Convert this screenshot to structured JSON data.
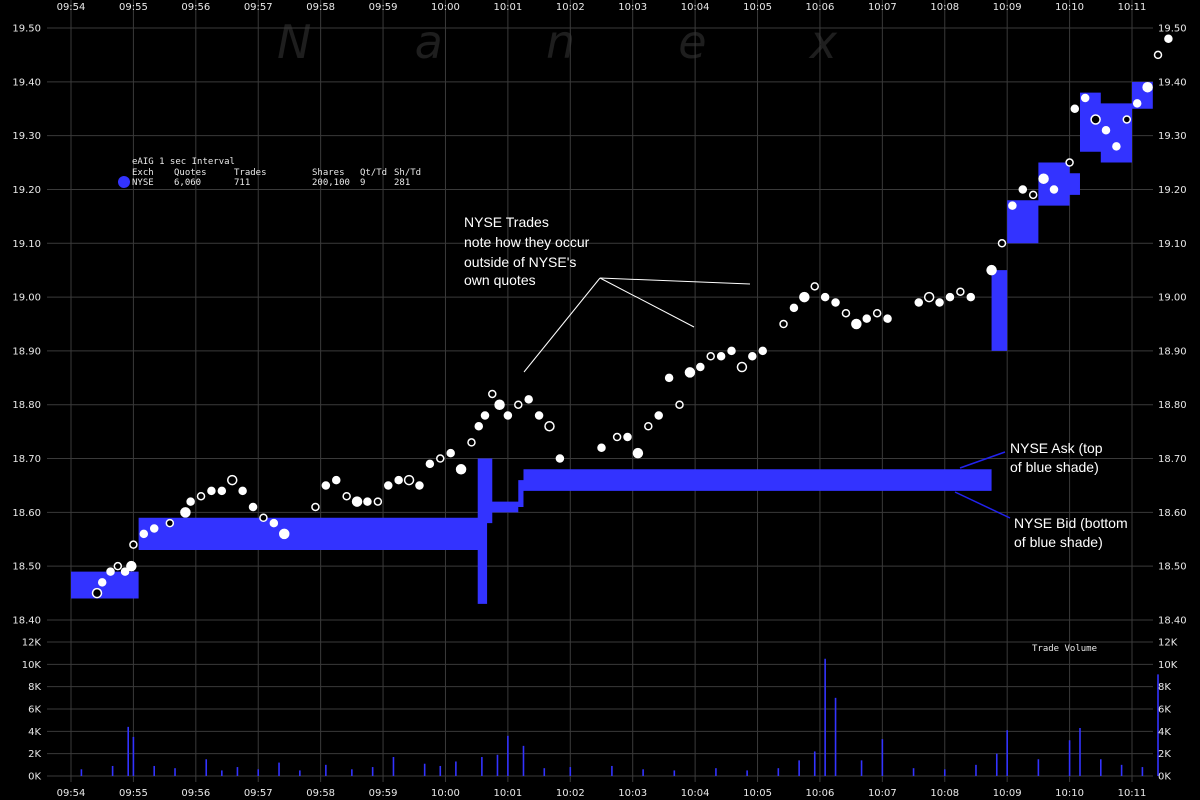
{
  "colors": {
    "background": "#000000",
    "grid": "#3a3a3a",
    "quote_band": "#3333ff",
    "trades": "#ffffff",
    "volume": "#3333ff",
    "text": "#e8e8e8"
  },
  "watermark": "N a n e x",
  "legend": {
    "title": "eAIG 1 sec Interval",
    "headers": [
      "Exch",
      "Quotes",
      "Trades",
      "Shares",
      "Qt/Td",
      "Sh/Td"
    ],
    "row": [
      "NYSE",
      "6,060",
      "711",
      "200,100",
      "9",
      "281"
    ]
  },
  "annotations": {
    "trades": [
      "NYSE Trades",
      "note how they occur",
      "outside of NYSE's",
      "own quotes"
    ],
    "ask": [
      "NYSE Ask (top",
      "of blue shade)"
    ],
    "bid": [
      "NYSE Bid (bottom",
      "of blue shade)"
    ]
  },
  "chart_data": [
    {
      "type": "area",
      "title": "",
      "x_ticks": [
        "09:54",
        "09:55",
        "09:56",
        "09:57",
        "09:58",
        "09:59",
        "10:00",
        "10:01",
        "10:02",
        "10:03",
        "10:04",
        "10:05",
        "10:06",
        "10:07",
        "10:08",
        "10:09",
        "10:10",
        "10:11"
      ],
      "y_ticks": [
        "18.40",
        "18.50",
        "18.60",
        "18.70",
        "18.80",
        "18.90",
        "19.00",
        "19.10",
        "19.20",
        "19.30",
        "19.40",
        "19.50"
      ],
      "ylim": [
        18.4,
        19.5
      ],
      "grid": true,
      "legend_position": "top-left",
      "series": [
        {
          "name": "NYSE",
          "kind": "quote band (bid to ask)",
          "points": [
            {
              "t": "09:54:00",
              "bid": 18.44,
              "ask": 18.49
            },
            {
              "t": "09:55:00",
              "bid": 18.44,
              "ask": 18.49
            },
            {
              "t": "09:55:05",
              "bid": 18.53,
              "ask": 18.59
            },
            {
              "t": "10:00:30",
              "bid": 18.53,
              "ask": 18.59
            },
            {
              "t": "10:00:31",
              "bid": 18.43,
              "ask": 18.7
            },
            {
              "t": "10:00:40",
              "bid": 18.58,
              "ask": 18.7
            },
            {
              "t": "10:00:45",
              "bid": 18.6,
              "ask": 18.62
            },
            {
              "t": "10:01:10",
              "bid": 18.61,
              "ask": 18.66
            },
            {
              "t": "10:01:15",
              "bid": 18.64,
              "ask": 18.68
            },
            {
              "t": "10:08:40",
              "bid": 18.64,
              "ask": 18.68
            },
            {
              "t": "10:08:45",
              "bid": 18.9,
              "ask": 19.05
            },
            {
              "t": "10:09:00",
              "bid": 19.1,
              "ask": 19.18
            },
            {
              "t": "10:09:30",
              "bid": 19.17,
              "ask": 19.25
            },
            {
              "t": "10:10:00",
              "bid": 19.19,
              "ask": 19.23
            },
            {
              "t": "10:10:10",
              "bid": 19.27,
              "ask": 19.38
            },
            {
              "t": "10:10:30",
              "bid": 19.25,
              "ask": 19.36
            },
            {
              "t": "10:11:00",
              "bid": 19.35,
              "ask": 19.4
            },
            {
              "t": "10:11:20",
              "bid": 19.4,
              "ask": 19.49
            }
          ]
        },
        {
          "name": "NYSE Trades",
          "kind": "scatter",
          "points": [
            [
              "09:54:25",
              18.45
            ],
            [
              "09:54:30",
              18.47
            ],
            [
              "09:54:38",
              18.49
            ],
            [
              "09:54:45",
              18.5
            ],
            [
              "09:54:52",
              18.49
            ],
            [
              "09:54:58",
              18.5
            ],
            [
              "09:55:00",
              18.54
            ],
            [
              "09:55:10",
              18.56
            ],
            [
              "09:55:20",
              18.57
            ],
            [
              "09:55:35",
              18.58
            ],
            [
              "09:55:50",
              18.6
            ],
            [
              "09:55:55",
              18.62
            ],
            [
              "09:56:05",
              18.63
            ],
            [
              "09:56:15",
              18.64
            ],
            [
              "09:56:25",
              18.64
            ],
            [
              "09:56:35",
              18.66
            ],
            [
              "09:56:45",
              18.64
            ],
            [
              "09:56:55",
              18.61
            ],
            [
              "09:57:05",
              18.59
            ],
            [
              "09:57:15",
              18.58
            ],
            [
              "09:57:25",
              18.56
            ],
            [
              "09:57:55",
              18.61
            ],
            [
              "09:58:05",
              18.65
            ],
            [
              "09:58:15",
              18.66
            ],
            [
              "09:58:25",
              18.63
            ],
            [
              "09:58:35",
              18.62
            ],
            [
              "09:58:45",
              18.62
            ],
            [
              "09:58:55",
              18.62
            ],
            [
              "09:59:05",
              18.65
            ],
            [
              "09:59:15",
              18.66
            ],
            [
              "09:59:25",
              18.66
            ],
            [
              "09:59:35",
              18.65
            ],
            [
              "09:59:45",
              18.69
            ],
            [
              "09:59:55",
              18.7
            ],
            [
              "10:00:05",
              18.71
            ],
            [
              "10:00:15",
              18.68
            ],
            [
              "10:00:25",
              18.73
            ],
            [
              "10:00:32",
              18.76
            ],
            [
              "10:00:38",
              18.78
            ],
            [
              "10:00:45",
              18.82
            ],
            [
              "10:00:52",
              18.8
            ],
            [
              "10:01:00",
              18.78
            ],
            [
              "10:01:10",
              18.8
            ],
            [
              "10:01:20",
              18.81
            ],
            [
              "10:01:30",
              18.78
            ],
            [
              "10:01:40",
              18.76
            ],
            [
              "10:01:50",
              18.7
            ],
            [
              "10:02:30",
              18.72
            ],
            [
              "10:02:45",
              18.74
            ],
            [
              "10:02:55",
              18.74
            ],
            [
              "10:03:05",
              18.71
            ],
            [
              "10:03:15",
              18.76
            ],
            [
              "10:03:25",
              18.78
            ],
            [
              "10:03:35",
              18.85
            ],
            [
              "10:03:45",
              18.8
            ],
            [
              "10:03:55",
              18.86
            ],
            [
              "10:04:05",
              18.87
            ],
            [
              "10:04:15",
              18.89
            ],
            [
              "10:04:25",
              18.89
            ],
            [
              "10:04:35",
              18.9
            ],
            [
              "10:04:45",
              18.87
            ],
            [
              "10:04:55",
              18.89
            ],
            [
              "10:05:05",
              18.9
            ],
            [
              "10:05:25",
              18.95
            ],
            [
              "10:05:35",
              18.98
            ],
            [
              "10:05:45",
              19.0
            ],
            [
              "10:05:55",
              19.02
            ],
            [
              "10:06:05",
              19.0
            ],
            [
              "10:06:15",
              18.99
            ],
            [
              "10:06:25",
              18.97
            ],
            [
              "10:06:35",
              18.95
            ],
            [
              "10:06:45",
              18.96
            ],
            [
              "10:06:55",
              18.97
            ],
            [
              "10:07:05",
              18.96
            ],
            [
              "10:07:35",
              18.99
            ],
            [
              "10:07:45",
              19.0
            ],
            [
              "10:07:55",
              18.99
            ],
            [
              "10:08:05",
              19.0
            ],
            [
              "10:08:15",
              19.01
            ],
            [
              "10:08:25",
              19.0
            ],
            [
              "10:08:45",
              19.05
            ],
            [
              "10:08:55",
              19.1
            ],
            [
              "10:09:05",
              19.17
            ],
            [
              "10:09:15",
              19.2
            ],
            [
              "10:09:25",
              19.19
            ],
            [
              "10:09:35",
              19.22
            ],
            [
              "10:09:45",
              19.2
            ],
            [
              "10:10:00",
              19.25
            ],
            [
              "10:10:05",
              19.35
            ],
            [
              "10:10:15",
              19.37
            ],
            [
              "10:10:25",
              19.33
            ],
            [
              "10:10:35",
              19.31
            ],
            [
              "10:10:45",
              19.28
            ],
            [
              "10:10:55",
              19.33
            ],
            [
              "10:11:05",
              19.36
            ],
            [
              "10:11:15",
              19.39
            ],
            [
              "10:11:25",
              19.45
            ],
            [
              "10:11:35",
              19.48
            ]
          ]
        }
      ]
    },
    {
      "type": "bar",
      "title": "Trade Volume",
      "y_ticks": [
        "0K",
        "2K",
        "4K",
        "6K",
        "8K",
        "10K",
        "12K"
      ],
      "ylim": [
        0,
        12000
      ],
      "x": [
        "09:54:10",
        "09:54:40",
        "09:54:55",
        "09:55:00",
        "09:55:20",
        "09:55:40",
        "09:56:10",
        "09:56:25",
        "09:56:40",
        "09:57:00",
        "09:57:20",
        "09:57:40",
        "09:58:05",
        "09:58:30",
        "09:58:50",
        "09:59:10",
        "09:59:40",
        "09:59:55",
        "10:00:10",
        "10:00:35",
        "10:00:50",
        "10:01:00",
        "10:01:15",
        "10:01:35",
        "10:02:00",
        "10:02:40",
        "10:03:10",
        "10:03:40",
        "10:04:20",
        "10:04:50",
        "10:05:20",
        "10:05:40",
        "10:05:55",
        "10:06:05",
        "10:06:15",
        "10:06:40",
        "10:07:00",
        "10:07:30",
        "10:08:00",
        "10:08:30",
        "10:08:50",
        "10:09:00",
        "10:09:30",
        "10:10:00",
        "10:10:10",
        "10:10:30",
        "10:10:50",
        "10:11:10",
        "10:11:25"
      ],
      "values": [
        600,
        900,
        4400,
        3500,
        900,
        700,
        1500,
        500,
        800,
        600,
        1200,
        500,
        1000,
        600,
        800,
        1700,
        1100,
        900,
        1300,
        1700,
        1900,
        3600,
        2700,
        700,
        800,
        900,
        600,
        500,
        700,
        500,
        700,
        1400,
        2200,
        10500,
        7000,
        1400,
        3300,
        700,
        600,
        1000,
        2000,
        4100,
        1500,
        3200,
        4300,
        1500,
        1000,
        800,
        9100
      ]
    }
  ]
}
